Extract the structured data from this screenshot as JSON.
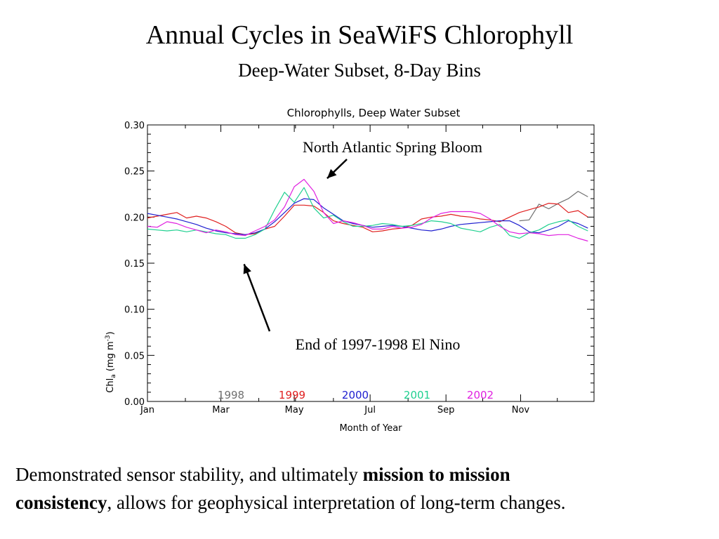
{
  "slide": {
    "title": "Annual Cycles in SeaWiFS Chlorophyll",
    "subtitle": "Deep-Water Subset, 8-Day Bins",
    "text_part1": "Demonstrated sensor stability, and ultimately ",
    "text_bold1": "mission to mission",
    "text_bold2": "consistency",
    "text_part2": ", allows for geophysical interpretation of long-term changes."
  },
  "chart_data": {
    "type": "line",
    "title": "Chlorophylls, Deep Water Subset",
    "xlabel": "Month of Year",
    "ylabel": "Chl",
    "ylabel_sub": "a",
    "ylabel_unit": " (mg m",
    "ylabel_sup": "-3",
    "ylabel_end": ")",
    "xlim": [
      1,
      366
    ],
    "ylim": [
      0.0,
      0.3
    ],
    "xticks": [
      1,
      61,
      121,
      183,
      245,
      306
    ],
    "xtick_labels": [
      "Jan",
      "Mar",
      "May",
      "Jul",
      "Sep",
      "Nov"
    ],
    "yticks": [
      0.0,
      0.05,
      0.1,
      0.15,
      0.2,
      0.25,
      0.3
    ],
    "ytick_labels": [
      "0.00",
      "0.05",
      "0.10",
      "0.15",
      "0.20",
      "0.25",
      "0.30"
    ],
    "grid": false,
    "legend_position": "bottom-center-inside",
    "x": [
      1,
      9,
      17,
      25,
      33,
      41,
      49,
      57,
      65,
      73,
      81,
      89,
      97,
      105,
      113,
      121,
      129,
      137,
      145,
      153,
      161,
      169,
      177,
      185,
      193,
      201,
      209,
      217,
      225,
      233,
      241,
      249,
      257,
      265,
      273,
      281,
      289,
      297,
      305,
      313,
      321,
      329,
      337,
      345,
      353,
      361
    ],
    "series": [
      {
        "name": "1998",
        "color": "#707070",
        "values": [
          null,
          null,
          null,
          null,
          null,
          null,
          null,
          null,
          null,
          null,
          null,
          null,
          null,
          null,
          null,
          null,
          null,
          null,
          null,
          null,
          null,
          null,
          null,
          null,
          null,
          null,
          null,
          null,
          null,
          null,
          null,
          null,
          null,
          null,
          null,
          null,
          null,
          null,
          0.196,
          0.197,
          0.214,
          0.209,
          0.215,
          0.22,
          0.228,
          0.222
        ]
      },
      {
        "name": "1999",
        "color": "#e02020",
        "values": [
          0.199,
          0.201,
          0.203,
          0.205,
          0.199,
          0.201,
          0.199,
          0.195,
          0.19,
          0.183,
          0.181,
          0.182,
          0.187,
          0.19,
          0.201,
          0.213,
          0.213,
          0.212,
          0.205,
          0.196,
          0.193,
          0.191,
          0.189,
          0.184,
          0.185,
          0.187,
          0.188,
          0.191,
          0.198,
          0.2,
          0.201,
          0.203,
          0.201,
          0.2,
          0.198,
          0.197,
          0.195,
          0.2,
          0.205,
          0.208,
          0.211,
          0.215,
          0.214,
          0.205,
          0.207,
          0.2
        ]
      },
      {
        "name": "2000",
        "color": "#2020d0",
        "values": [
          0.204,
          0.202,
          0.2,
          0.198,
          0.195,
          0.192,
          0.188,
          0.185,
          0.183,
          0.182,
          0.181,
          0.183,
          0.187,
          0.195,
          0.205,
          0.215,
          0.22,
          0.219,
          0.21,
          0.203,
          0.196,
          0.193,
          0.191,
          0.189,
          0.19,
          0.191,
          0.19,
          0.188,
          0.186,
          0.185,
          0.187,
          0.19,
          0.192,
          0.193,
          0.194,
          0.195,
          0.196,
          0.196,
          0.191,
          0.184,
          0.183,
          0.186,
          0.19,
          0.196,
          0.193,
          0.188
        ]
      },
      {
        "name": "2001",
        "color": "#20d090",
        "values": [
          0.187,
          0.186,
          0.185,
          0.186,
          0.184,
          0.186,
          0.184,
          0.182,
          0.181,
          0.177,
          0.177,
          0.181,
          0.187,
          0.208,
          0.227,
          0.216,
          0.232,
          0.21,
          0.199,
          0.202,
          0.195,
          0.19,
          0.19,
          0.191,
          0.193,
          0.192,
          0.19,
          0.191,
          0.193,
          0.196,
          0.195,
          0.193,
          0.188,
          0.186,
          0.184,
          0.189,
          0.192,
          0.18,
          0.177,
          0.183,
          0.186,
          0.192,
          0.195,
          0.197,
          0.19,
          0.185
        ]
      },
      {
        "name": "2002",
        "color": "#e020e0",
        "values": [
          0.19,
          0.189,
          0.195,
          0.193,
          0.189,
          0.186,
          0.183,
          0.186,
          0.184,
          0.181,
          0.18,
          0.185,
          0.19,
          0.197,
          0.211,
          0.233,
          0.241,
          0.228,
          0.205,
          0.193,
          0.196,
          0.194,
          0.191,
          0.187,
          0.187,
          0.19,
          0.188,
          0.189,
          0.192,
          0.199,
          0.204,
          0.206,
          0.206,
          0.206,
          0.204,
          0.198,
          0.19,
          0.184,
          0.182,
          0.183,
          0.182,
          0.18,
          0.181,
          0.181,
          0.177,
          0.174
        ]
      }
    ],
    "annotations": [
      {
        "text": "North Atlantic Spring Bloom",
        "arrow_to": [
          145,
          0.242
        ]
      },
      {
        "text": "End of 1997-1998 El Nino",
        "arrow_to": [
          80,
          0.152
        ]
      }
    ]
  }
}
